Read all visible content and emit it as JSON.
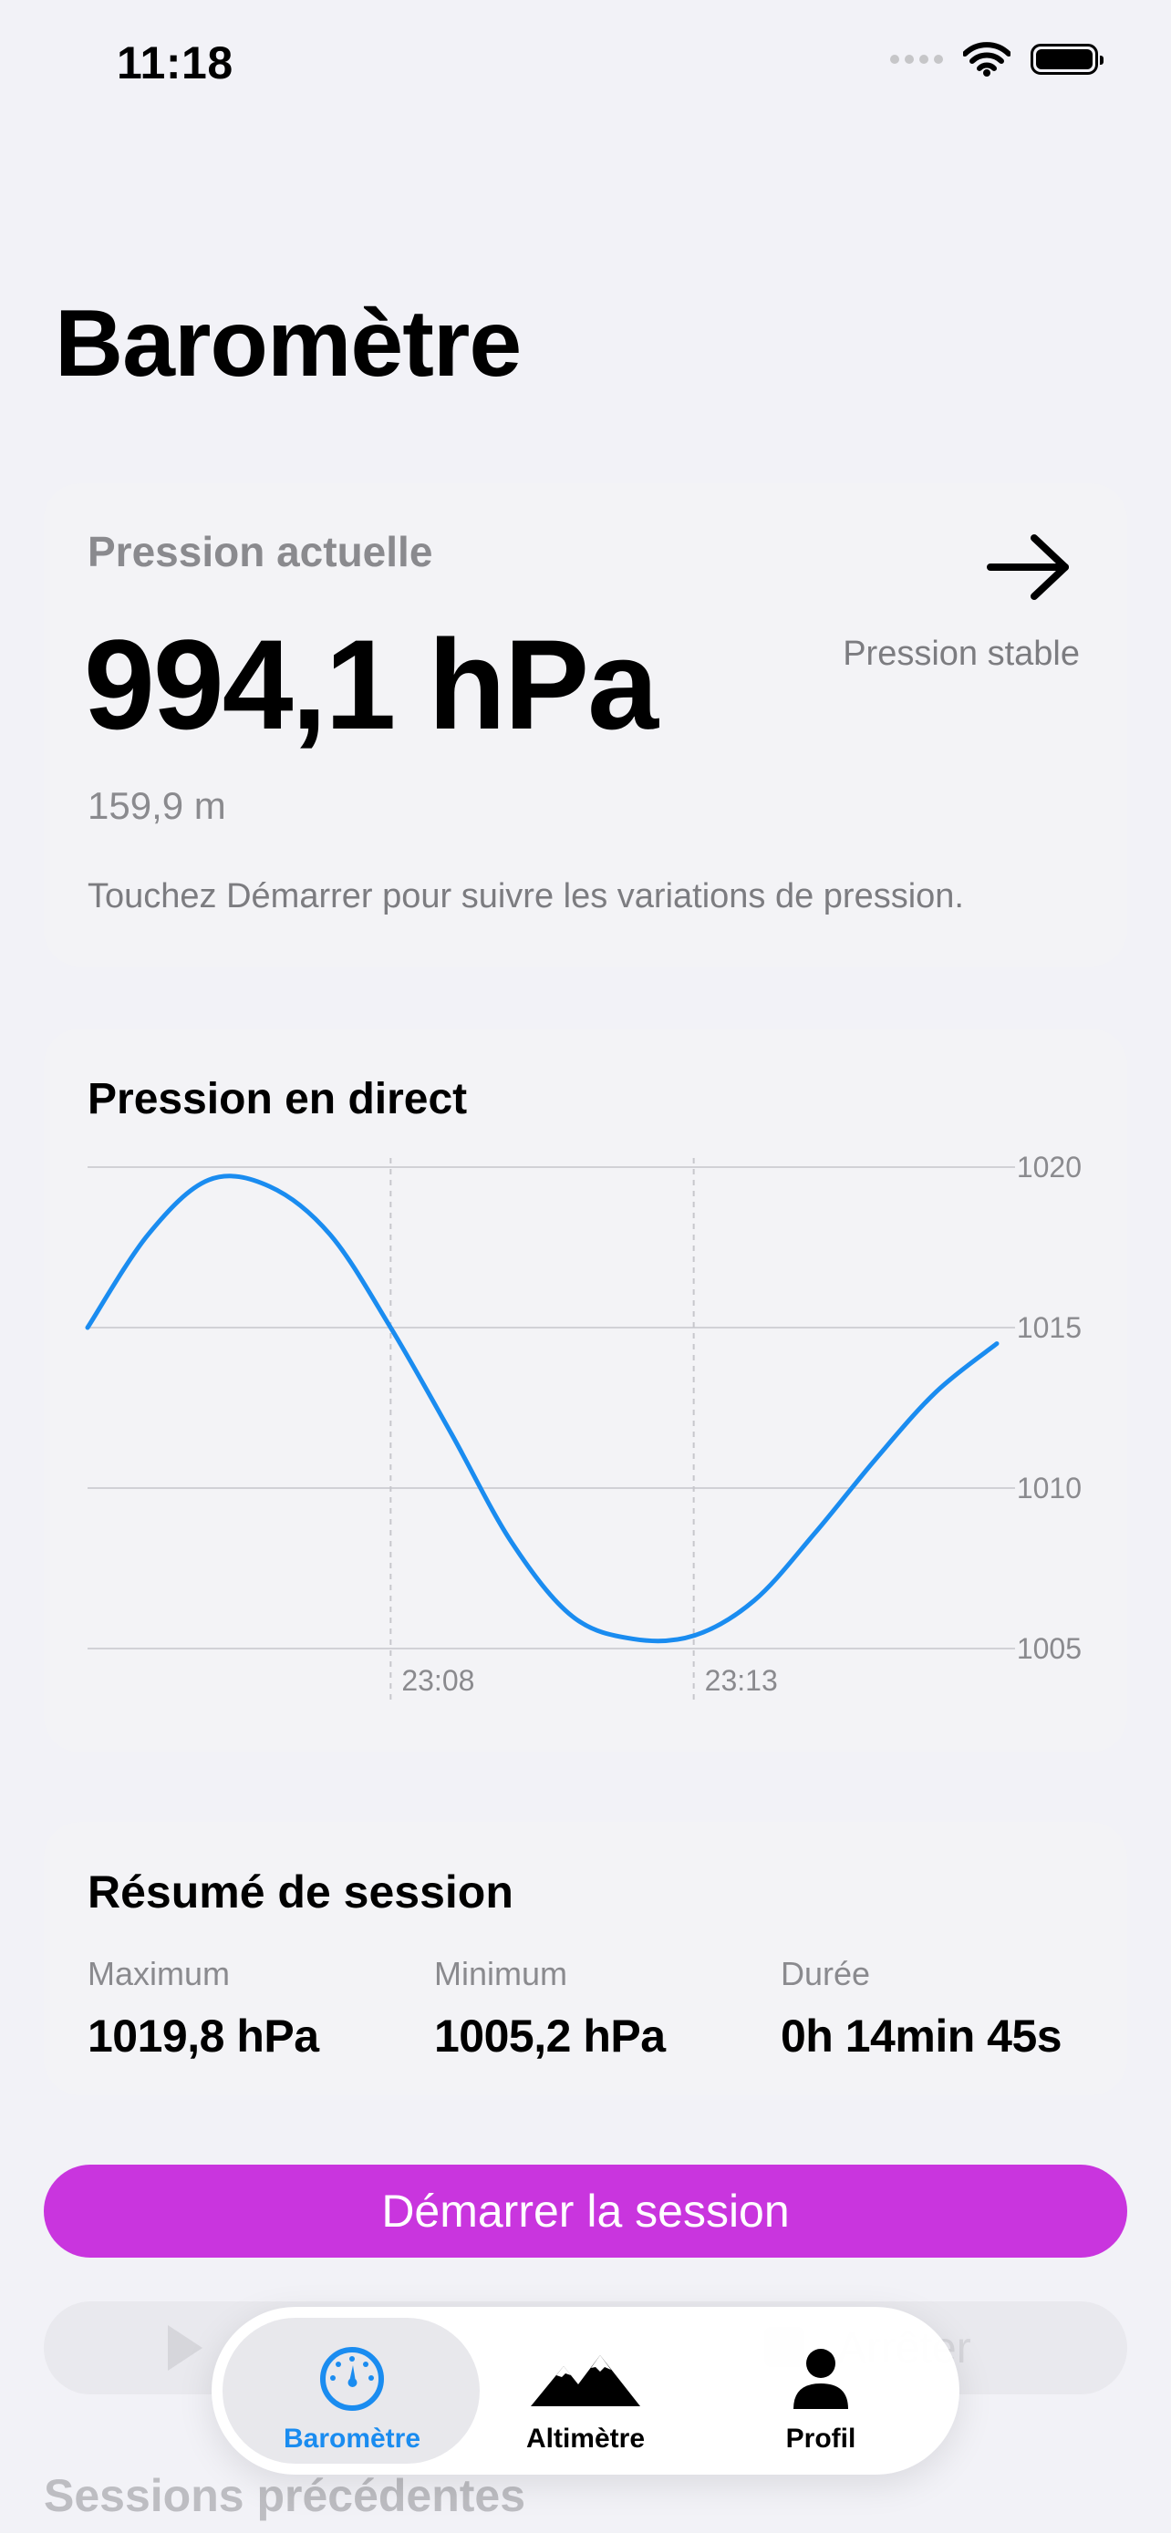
{
  "status_bar": {
    "time": "11:18"
  },
  "page": {
    "title": "Baromètre"
  },
  "current": {
    "label": "Pression actuelle",
    "value": "994,1 hPa",
    "altitude": "159,9 m",
    "hint": "Touchez Démarrer pour suivre les variations de pression.",
    "trend_label": "Pression stable",
    "trend_icon": "arrow-right-icon"
  },
  "chart": {
    "title": "Pression en direct",
    "y_ticks": [
      "1020",
      "1015",
      "1010",
      "1005"
    ],
    "x_ticks": [
      "23:08",
      "23:13"
    ]
  },
  "chart_data": {
    "type": "line",
    "title": "Pression en direct",
    "xlabel": "",
    "ylabel": "",
    "ylim": [
      1005,
      1020
    ],
    "y_ticks": [
      1005,
      1010,
      1015,
      1020
    ],
    "x_tick_labels": [
      "23:08",
      "23:13"
    ],
    "grid": true,
    "line_color": "#1a8cf0",
    "series": [
      {
        "x": [
          "23:03",
          "23:04",
          "23:05",
          "23:06",
          "23:07",
          "23:08",
          "23:09",
          "23:10",
          "23:11",
          "23:12",
          "23:13",
          "23:14",
          "23:15",
          "23:16",
          "23:17",
          "23:18"
        ],
        "values": [
          1015.0,
          1017.9,
          1019.6,
          1019.4,
          1017.9,
          1015.0,
          1011.7,
          1008.3,
          1006.0,
          1005.3,
          1005.4,
          1006.5,
          1008.6,
          1010.9,
          1013.0,
          1014.5
        ]
      }
    ]
  },
  "summary": {
    "title": "Résumé de session",
    "items": [
      {
        "label": "Maximum",
        "value": "1019,8 hPa"
      },
      {
        "label": "Minimum",
        "value": "1005,2 hPa"
      },
      {
        "label": "Durée",
        "value": "0h 14min 45s"
      }
    ]
  },
  "actions": {
    "start_label": "Démarrer la session",
    "secondary_label": "Arrêter"
  },
  "sessions": {
    "header": "Sessions précédentes"
  },
  "tab_bar": {
    "items": [
      {
        "label": "Baromètre",
        "icon": "gauge-icon",
        "active": true
      },
      {
        "label": "Altimètre",
        "icon": "mountains-icon",
        "active": false
      },
      {
        "label": "Profil",
        "icon": "person-icon",
        "active": false
      }
    ]
  },
  "colors": {
    "accent": "#1a8cf0",
    "primary_button": "#c935de",
    "background": "#f2f2f7"
  }
}
